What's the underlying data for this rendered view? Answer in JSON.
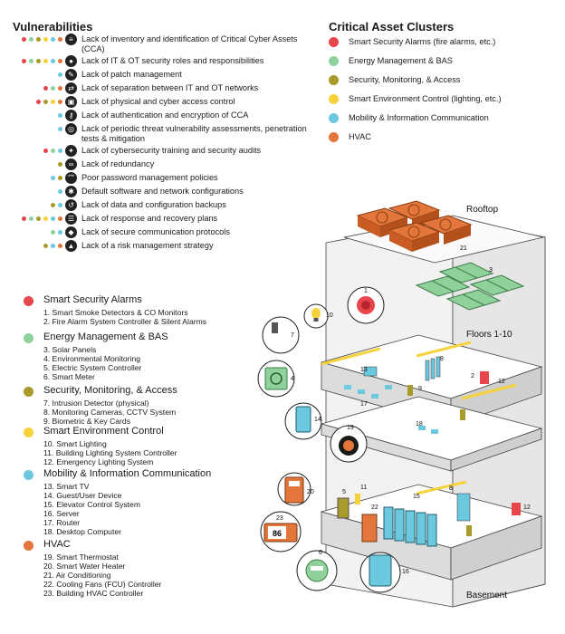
{
  "colors": {
    "red": "#e8464c",
    "green": "#8fd19a",
    "olive": "#a99a2c",
    "yellow": "#f6d23b",
    "cyan": "#6cc8de",
    "orange": "#e3763a"
  },
  "vulnerabilities": {
    "title": "Vulnerabilities",
    "items": [
      {
        "text": "Lack of inventory and identification of Critical Cyber Assets (CCA)",
        "dots": [
          "red",
          "green",
          "olive",
          "yellow",
          "cyan",
          "orange"
        ],
        "icon": "list-icon"
      },
      {
        "text": "Lack of IT & OT security roles and responsibilities",
        "dots": [
          "red",
          "green",
          "olive",
          "yellow",
          "cyan",
          "orange"
        ],
        "icon": "person-icon"
      },
      {
        "text": "Lack of patch management",
        "dots": [
          "cyan"
        ],
        "icon": "patch-icon"
      },
      {
        "text": "Lack of separation between IT and OT networks",
        "dots": [
          "red",
          "green",
          "orange"
        ],
        "icon": "network-icon"
      },
      {
        "text": "Lack of physical and cyber access control",
        "dots": [
          "red",
          "olive",
          "yellow",
          "orange"
        ],
        "icon": "lock-icon"
      },
      {
        "text": "Lack of authentication and encryption of CCA",
        "dots": [
          "cyan"
        ],
        "icon": "key-icon"
      },
      {
        "text": "Lack of periodic threat vulnerability assessments, penetration tests & mitigation",
        "dots": [
          "cyan"
        ],
        "icon": "assessment-icon"
      },
      {
        "text": "Lack of cybersecurity training and security audits",
        "dots": [
          "red",
          "green",
          "cyan"
        ],
        "icon": "training-icon"
      },
      {
        "text": "Lack of redundancy",
        "dots": [
          "olive"
        ],
        "icon": "redundancy-icon"
      },
      {
        "text": "Poor password management policies",
        "dots": [
          "cyan",
          "olive"
        ],
        "icon": "password-icon"
      },
      {
        "text": "Default software and network configurations",
        "dots": [
          "cyan"
        ],
        "icon": "gear-icon"
      },
      {
        "text": "Lack of data and configuration backups",
        "dots": [
          "olive",
          "cyan"
        ],
        "icon": "backup-icon"
      },
      {
        "text": "Lack of response and recovery plans",
        "dots": [
          "red",
          "green",
          "olive",
          "yellow",
          "cyan",
          "orange"
        ],
        "icon": "plan-icon"
      },
      {
        "text": "Lack of secure communication protocols",
        "dots": [
          "green",
          "cyan"
        ],
        "icon": "protocol-icon"
      },
      {
        "text": "Lack of a risk management strategy",
        "dots": [
          "olive",
          "cyan",
          "orange"
        ],
        "icon": "risk-icon"
      }
    ]
  },
  "clusters": {
    "title": "Critical Asset Clusters",
    "items": [
      {
        "label": "Smart Security Alarms (fire alarms, etc.)",
        "color": "red"
      },
      {
        "label": "Energy Management & BAS",
        "color": "green"
      },
      {
        "label": "Security, Monitoring, & Access",
        "color": "olive"
      },
      {
        "label": "Smart Environment Control (lighting, etc.)",
        "color": "yellow"
      },
      {
        "label": "Mobility & Information Communication",
        "color": "cyan"
      },
      {
        "label": "HVAC",
        "color": "orange"
      }
    ]
  },
  "groups": [
    {
      "title": "Smart Security Alarms",
      "color": "red",
      "items": [
        "1. Smart Smoke Detectors & CO Monitors",
        "2. Fire Alarm System Controller & Silent Alarms"
      ]
    },
    {
      "title": "Energy Management & BAS",
      "color": "green",
      "items": [
        "3. Solar Panels",
        "4. Environmental Monitoring",
        "5. Electric System Controller",
        "6. Smart Meter"
      ]
    },
    {
      "title": "Security, Monitoring, & Access",
      "color": "olive",
      "items": [
        "7. Intrusion Detector (physical)",
        "8. Monitoring Cameras, CCTV System",
        "9. Biometric & Key Cards"
      ]
    },
    {
      "title": "Smart Environment Control",
      "color": "yellow",
      "items": [
        "10. Smart Lighting",
        "11. Building Lighting System Controller",
        "12. Emergency Lighting System"
      ]
    },
    {
      "title": "Mobility & Information Communication",
      "color": "cyan",
      "items": [
        "13. Smart TV",
        "14. Guest/User Device",
        "15. Elevator Control System",
        "16. Server",
        "17. Router",
        "18. Desktop Computer"
      ]
    },
    {
      "title": "HVAC",
      "color": "orange",
      "items": [
        "19. Smart Thermostat",
        "20. Smart Water Heater",
        "21. Air Conditioning",
        "22. Cooling Fans (FCU) Controller",
        "23. Building HVAC Controller"
      ]
    }
  ],
  "building": {
    "rooftop": "Rooftop",
    "floors": "Floors 1-10",
    "basement": "Basement",
    "thermostat_reading": "86",
    "callouts": [
      "1",
      "2",
      "3",
      "4",
      "5",
      "6",
      "7",
      "8",
      "8",
      "9",
      "10",
      "11",
      "12",
      "12",
      "13",
      "14",
      "15",
      "16",
      "17",
      "18",
      "19",
      "20",
      "21",
      "22",
      "23"
    ]
  }
}
